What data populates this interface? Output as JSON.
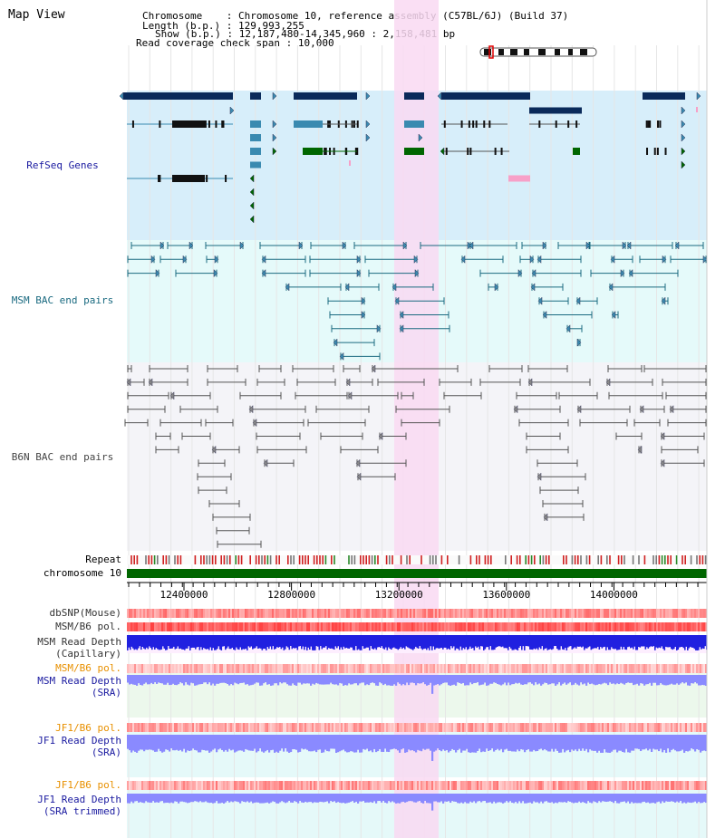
{
  "map_view": {
    "title": "Map View",
    "info_lines": [
      {
        "key": "Chromosome",
        "value": "Chromosome 10, reference assembly (C57BL/6J) (Build 37)"
      },
      {
        "key": "Length (b.p.)",
        "value": "129,993,255"
      },
      {
        "key": "Show (b.p.)",
        "value": "12,187,480-14,345,960 : 2,158,481 bp"
      },
      {
        "key": "Read coverage check span",
        "value": "10,000"
      }
    ]
  },
  "tracks": {
    "refseq": {
      "label": "RefSeq Genes",
      "color": "#1a1aa0",
      "bg": "#d7eefa"
    },
    "msm_bac": {
      "label": "MSM BAC end pairs",
      "color": "#1a6a80",
      "bg": "#e5fafa"
    },
    "b6n_bac": {
      "label": "B6N BAC end pairs",
      "color": "#444444",
      "bg": "#f4f4f8"
    },
    "repeat": {
      "label": "Repeat"
    },
    "chromosome": {
      "label": "chromosome 10",
      "color": "#006600"
    },
    "dbsnp": {
      "label": "dbSNP(Mouse)"
    },
    "msm_b6_pol": {
      "label": "MSM/B6 pol."
    },
    "msm_depth_cap": {
      "label_line1": "MSM Read Depth",
      "label_line2": "(Capillary)"
    },
    "msm_b6_pol_2": {
      "label": "MSM/B6 pol.",
      "color": "#e89000"
    },
    "msm_depth_sra": {
      "label_line1": "MSM Read Depth",
      "label_line2": "(SRA)",
      "color": "#1a1aa0"
    },
    "jf1_b6_pol": {
      "label": "JF1/B6 pol.",
      "color": "#e89000"
    },
    "jf1_depth_sra": {
      "label_line1": "JF1 Read Depth",
      "label_line2": "(SRA)",
      "color": "#1a1aa0"
    },
    "jf1_b6_pol_2": {
      "label": "JF1/B6 pol.",
      "color": "#e89000"
    },
    "jf1_depth_trim": {
      "label_line1": "JF1 Read Depth",
      "label_line2": "(SRA trimmed)",
      "color": "#1a1aa0"
    }
  },
  "axis": {
    "ticks": [
      "12400000",
      "12800000",
      "13200000",
      "13600000",
      "14000000"
    ],
    "tick_values": [
      12400000,
      12800000,
      13200000,
      13600000,
      14000000
    ],
    "range": [
      12187480,
      14345960
    ]
  },
  "highlight": {
    "range": [
      13200000,
      13360000
    ],
    "color": "#f9d9f2"
  },
  "colors": {
    "refseq_dark": "#0a2a5a",
    "refseq_mid": "#3a8ab0",
    "refseq_green": "#006600",
    "pink": "#f7a0c8",
    "depth_blue": "#2020e0",
    "depth_light": "#8a8aff",
    "snp_red": "#ff4040"
  }
}
